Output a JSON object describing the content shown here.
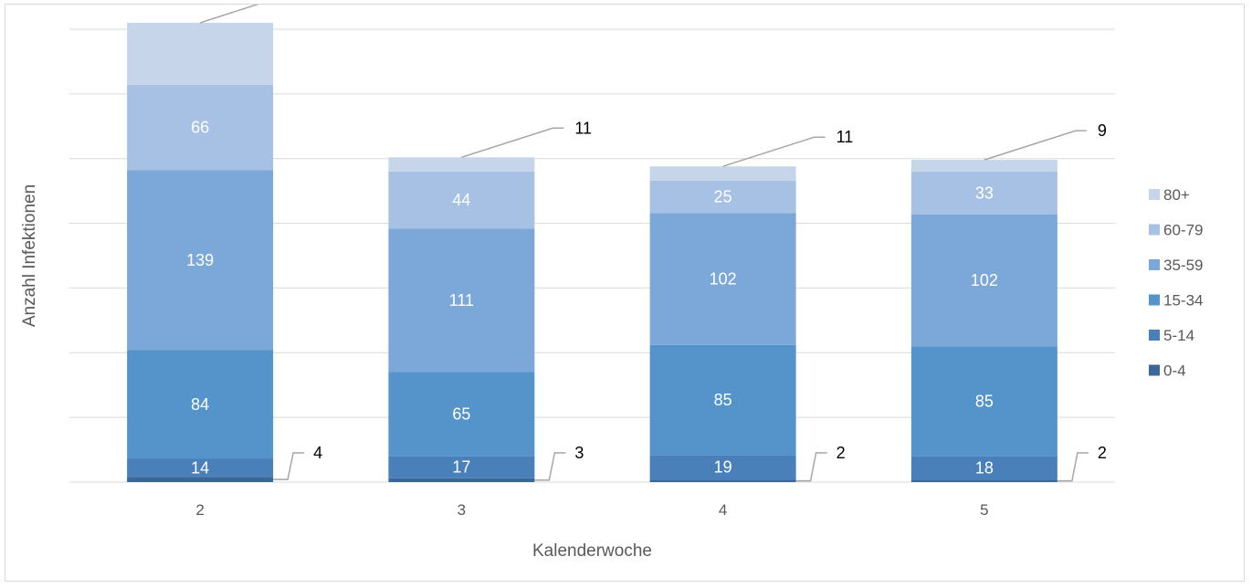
{
  "chart_data": {
    "type": "bar",
    "stacked": true,
    "title": "",
    "xlabel": "Kalenderwoche",
    "ylabel": "Anzahl Infektionen",
    "categories": [
      "2",
      "3",
      "4",
      "5"
    ],
    "series": [
      {
        "name": "0-4",
        "values": [
          4,
          3,
          2,
          2
        ],
        "color": "#3a6698"
      },
      {
        "name": "5-14",
        "values": [
          14,
          17,
          19,
          18
        ],
        "color": "#4a80b9"
      },
      {
        "name": "15-34",
        "values": [
          84,
          65,
          85,
          85
        ],
        "color": "#5593cb"
      },
      {
        "name": "35-59",
        "values": [
          139,
          111,
          102,
          102
        ],
        "color": "#7ba8d8"
      },
      {
        "name": "60-79",
        "values": [
          66,
          44,
          25,
          33
        ],
        "color": "#a6c1e3"
      },
      {
        "name": "80+",
        "values": [
          48,
          11,
          11,
          9
        ],
        "color": "#c6d5ea"
      }
    ],
    "ylim": [
      0,
      350
    ],
    "y_gridlines": [
      0,
      50,
      100,
      150,
      200,
      250,
      300,
      350
    ],
    "y_tick_labels_shown": false,
    "grid": true,
    "legend_position": "right"
  }
}
